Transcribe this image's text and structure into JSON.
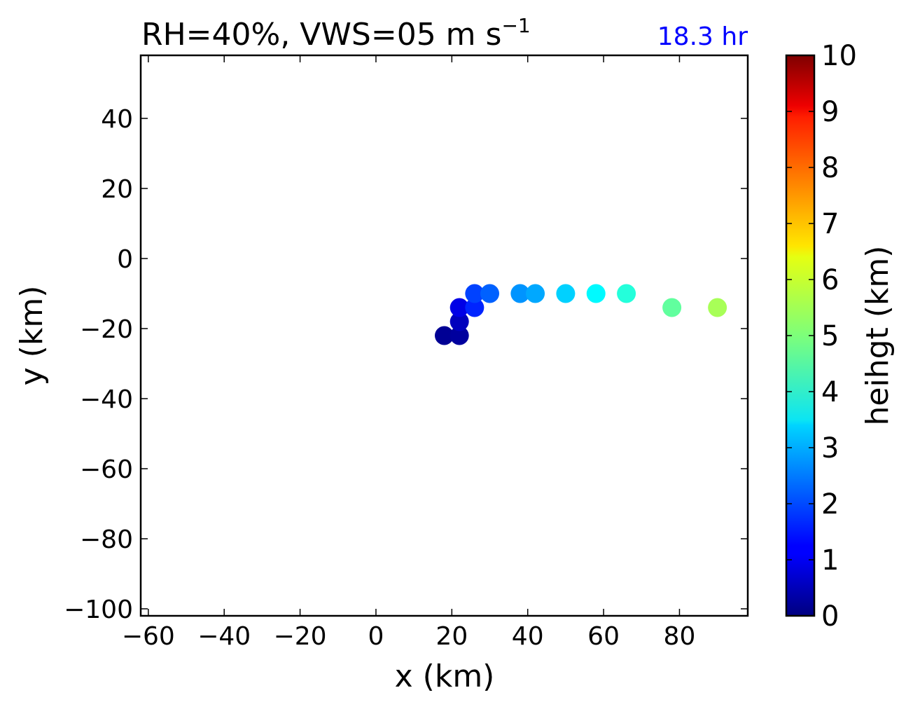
{
  "chart_data": {
    "type": "scatter",
    "title": "RH=40%, VWS=05 m s",
    "title_superscript": "−1",
    "annotation": "18.3 hr",
    "annotation_color": "#0000ff",
    "xlabel": "x (km)",
    "ylabel": "y (km)",
    "xlim": [
      -62,
      98
    ],
    "ylim": [
      -102,
      58
    ],
    "xticks": [
      -60,
      -40,
      -20,
      0,
      20,
      40,
      60,
      80
    ],
    "yticks": [
      -100,
      -80,
      -60,
      -40,
      -20,
      0,
      20,
      40
    ],
    "colorbar": {
      "label": "heihgt (km)",
      "range": [
        0,
        10
      ],
      "ticks": [
        0,
        1,
        2,
        3,
        4,
        5,
        6,
        7,
        8,
        9,
        10
      ],
      "colormap": "jet"
    },
    "points": [
      {
        "x": 18,
        "y": -22,
        "height": 0.2
      },
      {
        "x": 22,
        "y": -22,
        "height": 0.3
      },
      {
        "x": 22,
        "y": -18,
        "height": 0.6
      },
      {
        "x": 22,
        "y": -14,
        "height": 1.0
      },
      {
        "x": 26,
        "y": -14,
        "height": 1.6
      },
      {
        "x": 26,
        "y": -10,
        "height": 1.9
      },
      {
        "x": 30,
        "y": -10,
        "height": 2.2
      },
      {
        "x": 38,
        "y": -10,
        "height": 2.7
      },
      {
        "x": 42,
        "y": -10,
        "height": 2.9
      },
      {
        "x": 50,
        "y": -10,
        "height": 3.3
      },
      {
        "x": 58,
        "y": -10,
        "height": 3.7
      },
      {
        "x": 66,
        "y": -10,
        "height": 4.1
      },
      {
        "x": 78,
        "y": -14,
        "height": 4.7
      },
      {
        "x": 90,
        "y": -14,
        "height": 5.4
      }
    ]
  }
}
